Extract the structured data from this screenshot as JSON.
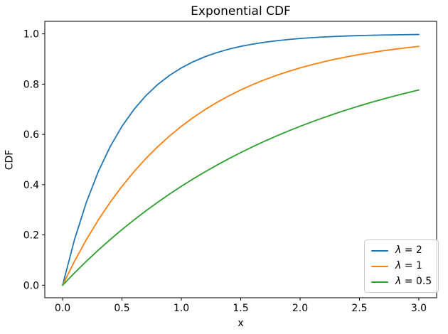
{
  "chart_data": {
    "type": "line",
    "title": "Exponential CDF",
    "xlabel": "x",
    "ylabel": "CDF",
    "xlim": [
      -0.15,
      3.15
    ],
    "ylim": [
      -0.05,
      1.05
    ],
    "grid": false,
    "legend_position": "lower right",
    "background_color": "#ffffff",
    "spine_color": "#000000",
    "legend_border_color": "#cccccc",
    "xticks": [
      0.0,
      0.5,
      1.0,
      1.5,
      2.0,
      2.5,
      3.0
    ],
    "xtick_labels": [
      "0.0",
      "0.5",
      "1.0",
      "1.5",
      "2.0",
      "2.5",
      "3.0"
    ],
    "yticks": [
      0.0,
      0.2,
      0.4,
      0.6,
      0.8,
      1.0
    ],
    "ytick_labels": [
      "0.0",
      "0.2",
      "0.4",
      "0.6",
      "0.8",
      "1.0"
    ],
    "x": [
      0.0,
      0.1,
      0.2,
      0.3,
      0.4,
      0.5,
      0.6,
      0.7,
      0.8,
      0.9,
      1.0,
      1.1,
      1.2,
      1.3,
      1.4,
      1.5,
      1.6,
      1.7,
      1.8,
      1.9,
      2.0,
      2.1,
      2.2,
      2.3,
      2.4,
      2.5,
      2.6,
      2.7,
      2.8,
      2.9,
      3.0
    ],
    "series": [
      {
        "name": "λ = 2",
        "color": "#1f77b4",
        "values": [
          0.0,
          0.1813,
          0.3297,
          0.4512,
          0.5507,
          0.6321,
          0.6988,
          0.7534,
          0.7981,
          0.8347,
          0.8647,
          0.8892,
          0.9093,
          0.9257,
          0.9392,
          0.9502,
          0.9592,
          0.9666,
          0.9727,
          0.9776,
          0.9817,
          0.985,
          0.9877,
          0.9899,
          0.9918,
          0.9933,
          0.9945,
          0.9955,
          0.9963,
          0.997,
          0.9975
        ]
      },
      {
        "name": "λ = 1",
        "color": "#ff7f0e",
        "values": [
          0.0,
          0.0952,
          0.1813,
          0.2592,
          0.3297,
          0.3935,
          0.4512,
          0.5034,
          0.5507,
          0.5934,
          0.6321,
          0.6671,
          0.6988,
          0.7275,
          0.7534,
          0.7769,
          0.7981,
          0.8173,
          0.8347,
          0.8504,
          0.8647,
          0.8775,
          0.8892,
          0.8997,
          0.9093,
          0.9179,
          0.9257,
          0.9328,
          0.9392,
          0.945,
          0.9502
        ]
      },
      {
        "name": "λ = 0.5",
        "color": "#2ca02c",
        "values": [
          0.0,
          0.0488,
          0.0952,
          0.1393,
          0.1813,
          0.2212,
          0.2592,
          0.2953,
          0.3297,
          0.3624,
          0.3935,
          0.4231,
          0.4512,
          0.478,
          0.5034,
          0.5276,
          0.5507,
          0.5726,
          0.5934,
          0.6133,
          0.6321,
          0.6501,
          0.6671,
          0.6834,
          0.6988,
          0.7135,
          0.7275,
          0.7408,
          0.7534,
          0.7654,
          0.7769
        ]
      }
    ]
  }
}
